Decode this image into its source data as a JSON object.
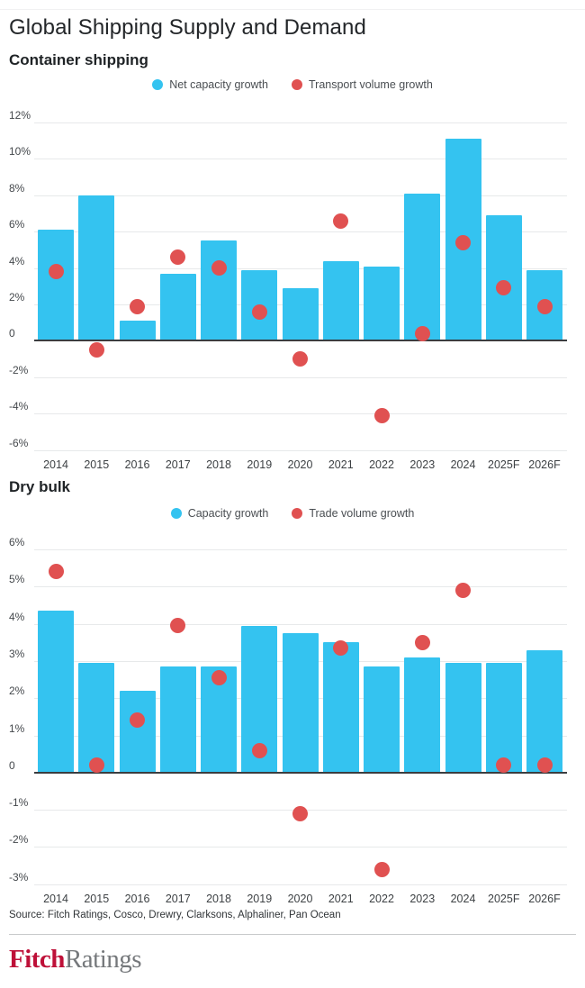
{
  "title": "Global Shipping Supply and Demand",
  "source": "Source: Fitch Ratings, Cosco, Drewry, Clarksons, Alphaliner, Pan Ocean",
  "logo": {
    "fitch": "Fitch",
    "ratings": "Ratings"
  },
  "colors": {
    "bar_blue": "#34c3f0",
    "dot_red": "#e05151",
    "fitch_red": "#be1038",
    "ratings_gray": "#75787b",
    "gridline": "#e7e9ea",
    "zero_axis": "#3a3d40"
  },
  "chart_data": [
    {
      "type": "bar",
      "title": "Container shipping",
      "categories": [
        "2014",
        "2015",
        "2016",
        "2017",
        "2018",
        "2019",
        "2020",
        "2021",
        "2022",
        "2023",
        "2024",
        "2025F",
        "2026F"
      ],
      "series": [
        {
          "name": "Net capacity growth",
          "type": "bar",
          "values": [
            6.1,
            8.0,
            1.1,
            3.7,
            5.5,
            3.9,
            2.9,
            4.4,
            4.1,
            8.1,
            11.1,
            6.9,
            3.9
          ]
        },
        {
          "name": "Transport volume growth",
          "type": "scatter",
          "values": [
            3.8,
            -0.5,
            1.9,
            4.6,
            4.0,
            1.6,
            -1.0,
            6.6,
            -4.1,
            0.4,
            5.4,
            2.9,
            1.9
          ]
        }
      ],
      "xlabel": "",
      "ylabel": "",
      "ylim": [
        -6,
        12
      ],
      "ytick_step": 2,
      "ytick_labels": [
        "12%",
        "10%",
        "8%",
        "6%",
        "4%",
        "2%",
        "0",
        "-2%",
        "-4%",
        "-6%"
      ],
      "grid": true,
      "legend_position": "top-center"
    },
    {
      "type": "bar",
      "title": "Dry bulk",
      "categories": [
        "2014",
        "2015",
        "2016",
        "2017",
        "2018",
        "2019",
        "2020",
        "2021",
        "2022",
        "2023",
        "2024",
        "2025F",
        "2026F"
      ],
      "series": [
        {
          "name": "Capacity growth",
          "type": "bar",
          "values": [
            4.35,
            2.95,
            2.2,
            2.85,
            2.85,
            3.95,
            3.75,
            3.5,
            2.85,
            3.1,
            2.95,
            2.95,
            3.3
          ]
        },
        {
          "name": "Trade volume growth",
          "type": "scatter",
          "values": [
            5.4,
            0.2,
            1.4,
            3.95,
            2.55,
            0.6,
            -1.1,
            3.35,
            -2.6,
            3.5,
            4.9,
            0.2,
            0.2
          ]
        }
      ],
      "xlabel": "",
      "ylabel": "",
      "ylim": [
        -3,
        6
      ],
      "ytick_step": 1,
      "ytick_labels": [
        "6%",
        "5%",
        "4%",
        "3%",
        "2%",
        "1%",
        "0",
        "-1%",
        "-2%",
        "-3%"
      ],
      "grid": true,
      "legend_position": "top-center"
    }
  ]
}
